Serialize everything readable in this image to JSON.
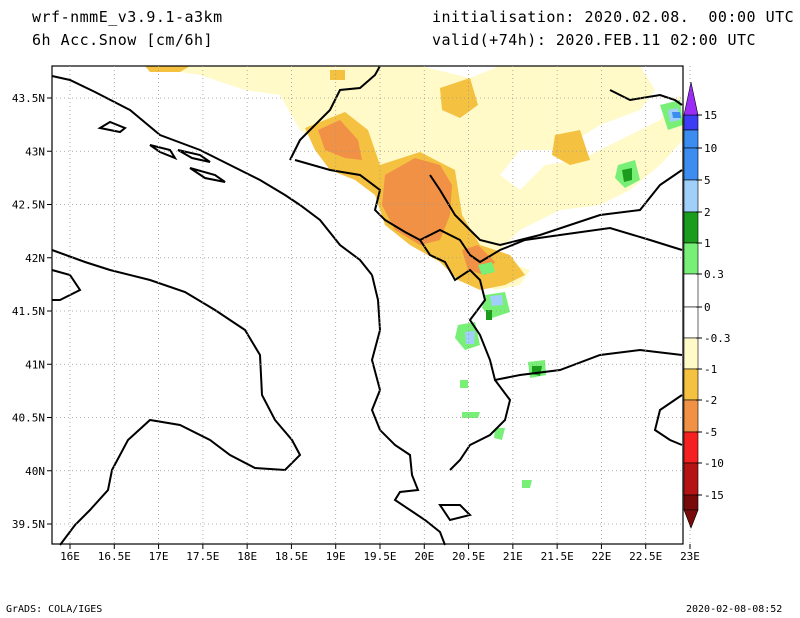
{
  "header": {
    "model": "wrf-nmmE_v3.9.1-a3km",
    "field": "6h Acc.Snow [cm/6h]",
    "init": "initialisation: 2020.02.08.  00:00 UTC",
    "valid": "valid(+74h): 2020.FEB.11 02:00 UTC"
  },
  "footer": {
    "left": "GrADS: COLA/IGES",
    "right": "2020-02-08-08:52"
  },
  "axes": {
    "x_ticks": [
      "16E",
      "16.5E",
      "17E",
      "17.5E",
      "18E",
      "18.5E",
      "19E",
      "19.5E",
      "20E",
      "20.5E",
      "21E",
      "21.5E",
      "22E",
      "22.5E",
      "23E"
    ],
    "y_ticks": [
      "43.5N",
      "43N",
      "42.5N",
      "42N",
      "41.5N",
      "41N",
      "40.5N",
      "40N",
      "39.5N"
    ]
  },
  "legend": {
    "colors": {
      "purple": "#9b2cf5",
      "blue": "#3d3df5",
      "midblue": "#3d8cf0",
      "lightblue": "#a0d0fa",
      "darkgreen": "#1c9c1c",
      "lightgreen": "#78f078",
      "cream": "#fffac8",
      "gold": "#f5c141",
      "orange": "#f09146",
      "red": "#f52020",
      "darkred": "#b41414",
      "maroon": "#780a0a"
    },
    "labels": [
      "15",
      "10",
      "5",
      "2",
      "1",
      "0.3",
      "0",
      "-0.3",
      "-1",
      "-2",
      "-5",
      "-10",
      "-15"
    ]
  }
}
